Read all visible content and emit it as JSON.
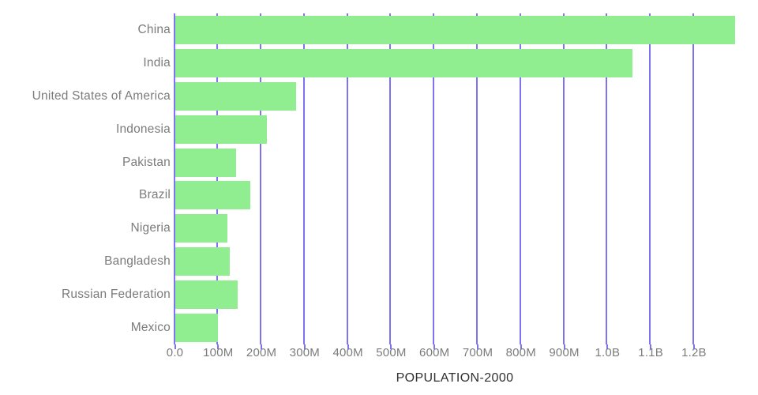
{
  "chart_data": {
    "type": "bar",
    "orientation": "horizontal",
    "title": "POPULATION-2000",
    "xlabel": "POPULATION-2000",
    "ylabel": "",
    "categories": [
      "China",
      "India",
      "United States of America",
      "Indonesia",
      "Pakistan",
      "Brazil",
      "Nigeria",
      "Bangladesh",
      "Russian Federation",
      "Mexico"
    ],
    "values": [
      1295000000,
      1057000000,
      281000000,
      212000000,
      141000000,
      174000000,
      121000000,
      126000000,
      146000000,
      99000000
    ],
    "xlim": [
      0,
      1296000000
    ],
    "x_tick_values": [
      0,
      100000000,
      200000000,
      300000000,
      400000000,
      500000000,
      600000000,
      700000000,
      800000000,
      900000000,
      1000000000,
      1100000000,
      1200000000
    ],
    "x_tick_labels": [
      "0.0",
      "100M",
      "200M",
      "300M",
      "400M",
      "500M",
      "600M",
      "700M",
      "800M",
      "900M",
      "1.0B",
      "1.1B",
      "1.2B"
    ],
    "grid": true,
    "legend": false,
    "colors": {
      "bar": "#90ee90",
      "grid": "#7c72f2",
      "tick_label": "#7b7b7b",
      "category_label": "#7b7b7b",
      "title": "#2f2f2f",
      "background": "#ffffff"
    }
  }
}
